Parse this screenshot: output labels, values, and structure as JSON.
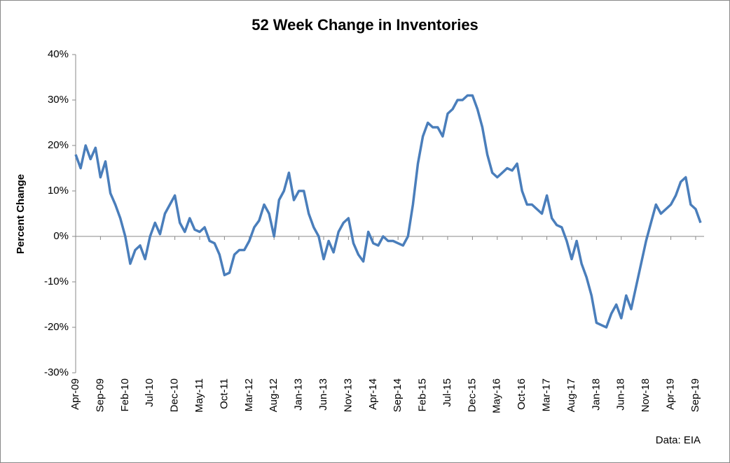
{
  "chart_data": {
    "type": "line",
    "title": "52 Week Change in Inventories",
    "y_label": "Percent Change",
    "annotation": "Data: EIA",
    "categories": [
      "Apr-09",
      null,
      null,
      null,
      null,
      "Sep-09",
      null,
      null,
      null,
      null,
      "Feb-10",
      null,
      null,
      null,
      null,
      "Jul-10",
      null,
      null,
      null,
      null,
      "Dec-10",
      null,
      null,
      null,
      null,
      "May-11",
      null,
      null,
      null,
      null,
      "Oct-11",
      null,
      null,
      null,
      null,
      "Mar-12",
      null,
      null,
      null,
      null,
      "Aug-12",
      null,
      null,
      null,
      null,
      "Jan-13",
      null,
      null,
      null,
      null,
      "Jun-13",
      null,
      null,
      null,
      null,
      "Nov-13",
      null,
      null,
      null,
      null,
      "Apr-14",
      null,
      null,
      null,
      null,
      "Sep-14",
      null,
      null,
      null,
      null,
      "Feb-15",
      null,
      null,
      null,
      null,
      "Jul-15",
      null,
      null,
      null,
      null,
      "Dec-15",
      null,
      null,
      null,
      null,
      "May-16",
      null,
      null,
      null,
      null,
      "Oct-16",
      null,
      null,
      null,
      null,
      "Mar-17",
      null,
      null,
      null,
      null,
      "Aug-17",
      null,
      null,
      null,
      null,
      "Jan-18",
      null,
      null,
      null,
      null,
      "Jun-18",
      null,
      null,
      null,
      null,
      "Nov-18",
      null,
      null,
      null,
      null,
      "Apr-19",
      null,
      null,
      null,
      null,
      "Sep-19",
      null
    ],
    "series": [
      {
        "name": "52 Week Change",
        "color": "#4a7ebb",
        "values": [
          18,
          15,
          20,
          17,
          19.5,
          13,
          16.5,
          9.5,
          7,
          4,
          0,
          -6,
          -3,
          -2,
          -5,
          0,
          3,
          0.5,
          5,
          7,
          9,
          3,
          1,
          4,
          1.5,
          1,
          2,
          -1,
          -1.5,
          -4,
          -8.5,
          -8,
          -4,
          -3,
          -3,
          -1,
          2,
          3.5,
          7,
          5,
          0,
          8,
          10,
          14,
          8,
          10,
          10,
          5,
          2,
          0,
          -5,
          -1,
          -3.5,
          1,
          3,
          4,
          -1.5,
          -4,
          -5.5,
          1,
          -1.5,
          -2,
          0,
          -1,
          -1,
          -1.5,
          -2,
          0,
          7,
          16,
          22,
          25,
          24,
          24,
          22,
          27,
          28,
          30,
          30,
          31,
          31,
          28,
          24,
          18,
          14,
          13,
          14,
          15,
          14.5,
          16,
          10,
          7,
          7,
          6,
          5,
          9,
          4,
          2.5,
          2,
          -1,
          -5,
          -1,
          -6,
          -9,
          -13,
          -19,
          -19.5,
          -20,
          -17,
          -15,
          -18,
          -13,
          -16,
          -11,
          -6,
          -1,
          3,
          7,
          5,
          6,
          7,
          9,
          12,
          13,
          7,
          6,
          3
        ]
      }
    ],
    "ylim": [
      -30,
      40
    ],
    "yticks": [
      {
        "value": -30,
        "label": "-30%"
      },
      {
        "value": -20,
        "label": "-20%"
      },
      {
        "value": -10,
        "label": "-10%"
      },
      {
        "value": 0,
        "label": "0%"
      },
      {
        "value": 10,
        "label": "10%"
      },
      {
        "value": 20,
        "label": "20%"
      },
      {
        "value": 30,
        "label": "30%"
      },
      {
        "value": 40,
        "label": "40%"
      }
    ],
    "grid": false
  }
}
